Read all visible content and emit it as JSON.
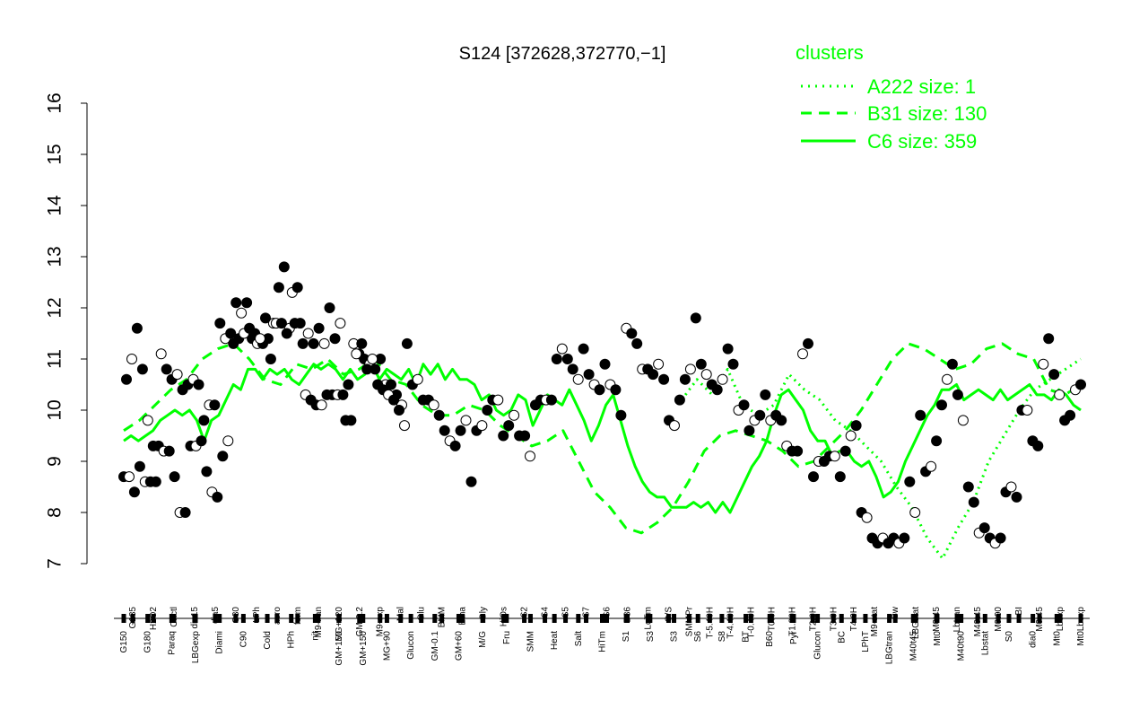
{
  "chart_data": {
    "type": "line",
    "title": "S124 [372628,372770,−1]",
    "xlabel": "",
    "ylabel": "",
    "ylim": [
      7,
      16
    ],
    "yticks": [
      7,
      8,
      9,
      10,
      11,
      12,
      13,
      14,
      15,
      16
    ],
    "grid": false,
    "colors": {
      "line": "#00ff00",
      "legend": "#00ff00",
      "points_filled": "#000000",
      "points_open": "#ffffff",
      "axis": "#000000"
    },
    "legend": {
      "position": "top-right",
      "title": "clusters",
      "entries": [
        {
          "label": "A222 size: 1",
          "style": "dotted"
        },
        {
          "label": "B31 size: 130",
          "style": "dashed"
        },
        {
          "label": "C6 size: 359",
          "style": "solid"
        }
      ]
    },
    "xtick_labels_top": [
      "G135",
      "H2O2",
      "Oxctl",
      "dia15",
      "dia5",
      "C30",
      "LPh",
      "aero",
      "ferm",
      "M9-tran",
      "MG+120",
      "GM-0.2",
      "M9-exp",
      "Mal",
      "Glu",
      "BMM",
      "Etha",
      "Gly",
      "HiOs",
      "S2",
      "S4",
      "S5",
      "S7",
      "S6",
      "B36",
      "LoTm",
      "G/S",
      "SMMPr",
      "T-5.40H",
      "T-4.40H",
      "T-0.40H",
      "T0.0H",
      "T1.30H",
      "T2.0H",
      "T3.0H",
      "T4.0H",
      "M9-stat",
      "Sw",
      "LBGstat",
      "M0t45",
      "Lbtran",
      "M40t45",
      "M0t90",
      "BI",
      "M0t45",
      "Lbexp",
      "Lbexp"
    ],
    "xtick_labels_bottom": [
      "G150",
      "G180",
      "Paraq",
      "LBGexp",
      "Diami",
      "C90",
      "Cold",
      "HPh",
      "nit",
      "GM+150",
      "GM+150",
      "MG+90",
      "Glucon",
      "GM-0.1",
      "GM+60",
      "M/G",
      "Fru",
      "SMM",
      "Heat",
      "Salt",
      "HiTm",
      "S1",
      "S3",
      "S3",
      "S6",
      "S8",
      "BT",
      "B60",
      "Pyr",
      "Glucon",
      "BC",
      "LPhT",
      "LBGtran",
      "M40t45",
      "Mt0",
      "M40t90",
      "Lbstat",
      "S0",
      "dia0",
      "Mt0",
      "Mt0"
    ],
    "x_count": 180,
    "points": [
      8.7,
      8.7,
      8.4,
      8.9,
      8.6,
      8.6,
      8.6,
      11.1,
      10.8,
      10.6,
      10.7,
      10.4,
      10.5,
      10.6,
      10.5,
      9.8,
      10.1,
      10.1,
      11.7,
      11.4,
      11.5,
      12.1,
      11.9,
      12.1,
      11.4,
      11.3,
      11.3,
      11.4,
      11.7,
      12.4,
      12.8,
      11.6,
      11.7,
      11.7,
      10.3,
      10.2,
      10.1,
      10.1,
      10.3,
      10.3,
      10.3,
      10.3,
      10.5,
      11.3,
      11.1,
      11.0,
      10.9,
      10.8,
      11.0,
      10.5,
      10.5,
      10.3,
      10.1,
      11.3,
      10.5,
      10.6,
      10.2,
      10.2,
      10.1,
      9.9,
      9.6,
      9.4,
      9.3,
      9.6,
      9.8,
      8.6,
      9.6,
      9.7,
      10.0,
      10.2,
      10.2,
      9.5,
      9.7,
      9.9,
      9.5,
      9.5,
      9.1,
      10.1,
      10.2,
      10.2,
      10.2,
      11.0,
      11.2,
      11.0,
      10.8,
      10.6,
      11.2,
      10.7,
      10.5,
      10.4,
      10.9,
      10.5,
      10.4,
      9.9,
      11.6,
      11.5,
      11.3,
      10.8,
      10.8,
      10.7,
      10.9,
      10.6,
      9.8,
      9.7,
      10.2,
      10.6,
      10.8,
      11.8,
      10.9,
      10.7,
      10.5,
      10.4,
      10.6,
      11.2,
      10.9,
      10.0,
      10.1,
      9.6,
      9.8,
      9.9,
      10.3,
      9.8,
      9.9,
      9.8,
      9.3,
      9.2,
      9.2,
      11.1,
      11.3,
      8.7,
      9.0,
      9.0,
      9.1,
      9.1,
      8.7,
      9.2,
      9.5,
      9.7,
      8.0,
      7.9,
      7.5,
      7.4,
      7.5,
      7.4,
      7.5,
      7.4,
      7.5,
      8.6,
      8.0,
      9.9,
      8.8,
      8.9,
      9.4,
      10.1,
      10.6,
      10.9,
      10.3,
      9.8,
      8.5,
      8.2,
      7.6,
      7.7,
      7.5,
      7.4,
      7.5,
      8.4,
      8.5,
      8.3,
      10.0,
      10.0,
      9.4,
      9.3,
      10.9,
      11.4,
      10.7,
      10.3,
      9.8,
      9.9,
      10.4,
      10.5,
      10.6,
      11.0,
      11.6,
      10.8,
      9.8,
      9.3,
      9.3,
      9.2,
      9.2,
      8.7,
      8.0,
      8.0,
      9.3,
      9.3,
      9.4,
      8.8,
      8.4,
      8.3,
      9.1,
      9.4,
      11.3,
      11.4,
      11.5,
      11.6,
      11.5,
      11.4,
      11.8,
      11.0,
      11.7,
      11.7,
      11.5,
      12.3,
      12.4,
      11.3,
      11.5,
      11.3,
      11.6,
      11.3,
      12.0,
      11.4,
      11.7,
      9.8,
      9.8,
      11.1,
      11.3,
      10.8,
      11.0,
      10.5,
      10.4,
      10.3,
      10.2,
      10.0,
      9.7
    ],
    "c6_line": [
      9.4,
      9.5,
      9.4,
      9.5,
      9.6,
      9.8,
      9.9,
      10.0,
      9.9,
      10.0,
      9.8,
      9.4,
      9.8,
      9.9,
      10.2,
      10.5,
      10.4,
      10.8,
      10.8,
      10.6,
      10.8,
      10.7,
      10.8,
      10.6,
      10.5,
      10.7,
      10.9,
      10.8,
      10.9,
      10.8,
      10.6,
      10.8,
      10.6,
      10.7,
      10.9,
      10.6,
      10.8,
      10.7,
      10.6,
      10.8,
      10.5,
      10.9,
      10.7,
      10.9,
      10.6,
      10.8,
      10.6,
      10.6,
      10.5,
      10.2,
      10.3,
      10.0,
      9.9,
      10.0,
      10.3,
      10.2,
      9.7,
      10.0,
      10.3,
      10.2,
      10.1,
      10.4,
      10.1,
      9.8,
      9.4,
      9.7,
      10.1,
      10.3,
      9.8,
      9.3,
      8.9,
      8.6,
      8.4,
      8.3,
      8.3,
      8.1,
      8.1,
      8.1,
      8.2,
      8.1,
      8.2,
      8.0,
      8.2,
      8.0,
      8.3,
      8.6,
      8.9,
      9.1,
      9.4,
      9.9,
      10.3,
      10.4,
      10.2,
      10.0,
      9.6,
      9.4,
      9.4,
      9.1,
      9.2,
      9.2,
      9.0,
      8.9,
      9.0,
      8.7,
      8.3,
      8.4,
      8.6,
      9.0,
      9.3,
      9.6,
      9.9,
      10.1,
      10.4,
      10.4,
      10.5,
      10.2,
      10.3,
      10.4,
      10.3,
      10.2,
      10.4,
      10.2,
      10.3,
      10.4,
      10.5,
      10.3,
      10.3,
      10.2,
      10.4,
      10.3,
      10.1,
      10.0
    ],
    "b31_line": [
      9.6,
      9.8,
      10.1,
      10.4,
      10.6,
      11.0,
      11.2,
      11.3,
      11.0,
      10.6,
      10.5,
      10.9,
      10.8,
      11.0,
      10.7,
      10.8,
      11.0,
      10.6,
      10.5,
      10.1,
      9.9,
      9.9,
      10.1,
      10.0,
      9.7,
      9.5,
      9.3,
      9.4,
      9.6,
      9.0,
      8.4,
      8.1,
      7.7,
      7.6,
      7.8,
      8.1,
      8.6,
      9.2,
      9.5,
      9.6,
      9.5,
      9.4,
      9.2,
      8.9,
      9.0,
      9.3,
      9.6,
      10.0,
      10.5,
      11.0,
      11.3,
      11.2,
      11.0,
      10.8,
      10.9,
      11.2,
      11.3,
      11.1,
      11.0,
      10.4,
      10.3,
      10.5
    ],
    "a222_line": [
      10.2,
      10.6,
      10.3,
      10.8,
      10.1,
      9.9,
      10.1,
      10.7,
      10.4,
      10.2,
      9.8,
      9.6,
      9.3,
      9.0,
      8.5,
      8.1,
      7.5,
      7.1,
      7.7,
      8.2,
      9.0,
      9.5,
      10.0,
      10.4,
      10.6,
      10.8,
      11.0
    ]
  }
}
